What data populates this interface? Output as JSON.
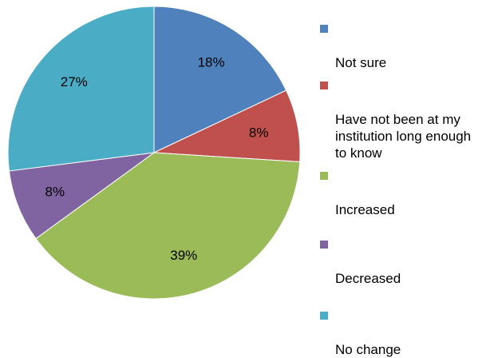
{
  "chart_data": {
    "type": "pie",
    "slices": [
      {
        "label": "Not sure",
        "value": 18,
        "display": "18%",
        "color": "#4F81BD"
      },
      {
        "label": "Have not been at my\ninstitution long enough\nto know",
        "value": 8,
        "display": "8%",
        "color": "#C0504D"
      },
      {
        "label": "Increased",
        "value": 39,
        "display": "39%",
        "color": "#9BBB59"
      },
      {
        "label": "Decreased",
        "value": 8,
        "display": "8%",
        "color": "#8064A2"
      },
      {
        "label": "No change",
        "value": 27,
        "display": "27%",
        "color": "#4BACC6"
      }
    ],
    "start": "12 o'clock",
    "direction": "clockwise",
    "legend_position": "right"
  }
}
